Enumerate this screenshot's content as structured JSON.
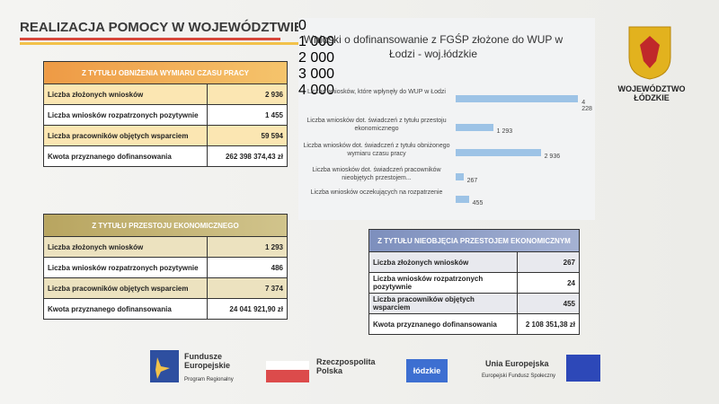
{
  "header": {
    "title": "REALIZACJA POMOCY W WOJEWÓDZTWIE"
  },
  "logo": {
    "text": "WOJEWÓDZTWO ŁÓDZKIE"
  },
  "tables": [
    {
      "header": "Z TYTUŁU OBNIŻENIA WYMIARU CZASU PRACY",
      "rows": [
        [
          "Liczba złożonych wniosków",
          "2 936"
        ],
        [
          "Liczba wniosków rozpatrzonych pozytywnie",
          "1 455"
        ],
        [
          "Liczba pracowników objętych wsparciem",
          "59 594"
        ],
        [
          "Kwota przyznanego dofinansowania",
          "262 398 374,43 zł"
        ]
      ]
    },
    {
      "header": "Z TYTUŁU PRZESTOJU EKONOMICZNEGO",
      "rows": [
        [
          "Liczba złożonych wniosków",
          "1 293"
        ],
        [
          "Liczba wniosków rozpatrzonych pozytywnie",
          "486"
        ],
        [
          "Liczba pracowników objętych wsparciem",
          "7 374"
        ],
        [
          "Kwota przyznanego dofinansowania",
          "24 041 921,90 zł"
        ]
      ]
    },
    {
      "header": "Z TYTUŁU NIEOBJĘCIA PRZESTOJEM EKONOMICZNYM",
      "rows": [
        [
          "Liczba złożonych wniosków",
          "267"
        ],
        [
          "Liczba wniosków rozpatrzonych pozytywnie",
          "24"
        ],
        [
          "Liczba pracowników objętych wsparciem",
          "455"
        ],
        [
          "Kwota przyznanego dofinansowania",
          "2 108 351,38 zł"
        ]
      ]
    }
  ],
  "chart_data": {
    "type": "hbar",
    "title": "Wnioski o dofinansowanie z FGŚP złożone do WUP w Łodzi - woj.łódzkie",
    "categories": [
      "Liczba wniosków, które wpłynęły do WUP w Łodzi",
      "Liczba wniosków dot. świadczeń z tytułu przestoju ekonomicznego",
      "Liczba wniosków dot. świadczeń z tytułu obniżonego wymiaru czasu pracy",
      "Liczba wniosków dot. świadczeń pracowników nieobjętych przestojem...",
      "Liczba wniosków oczekujących na rozpatrzenie"
    ],
    "values": [
      4228,
      1293,
      2936,
      267,
      455
    ],
    "value_labels": [
      "4 228",
      "1 293",
      "2 936",
      "267",
      "455"
    ],
    "color": "#9dc3e6",
    "xlim": [
      0,
      4500
    ],
    "xticks": [
      0,
      {
        "value": 1000,
        "label": "1 000"
      },
      {
        "value": 2000,
        "label": "2 000"
      },
      {
        "value": 3000,
        "label": "3 000"
      },
      {
        "value": 4000,
        "label": "4 000"
      }
    ]
  },
  "footer": {
    "fe": "Fundusze Europejskie",
    "fe_sub": "Program Regionalny",
    "rp": "Rzeczpospolita Polska",
    "lodzkie": "łódzkie",
    "ue": "Unia Europejska",
    "ue_sub": "Europejski Fundusz Społeczny"
  }
}
